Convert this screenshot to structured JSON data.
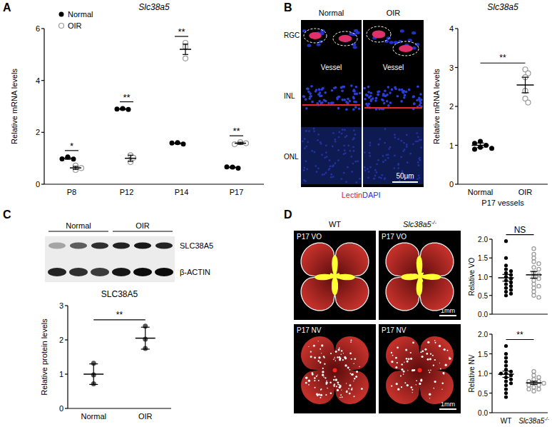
{
  "panels": [
    "A",
    "B",
    "C",
    "D"
  ],
  "chart_data": [
    {
      "type": "scatter",
      "title": "Slc38a5",
      "y_label": "Relative mRNA levels",
      "categories": [
        "P8",
        "P12",
        "P14",
        "P17"
      ],
      "ylim": [
        0,
        6
      ],
      "yticks": [
        0,
        2,
        4,
        6
      ],
      "legend": "upper left",
      "series": [
        {
          "name": "Normal",
          "color": "#000000",
          "marker": "circle",
          "values": [
            1.0,
            2.9,
            1.58,
            0.65
          ],
          "error": [
            0.04,
            0.03,
            0.03,
            0.03
          ],
          "points": [
            [
              1.05,
              0.97,
              0.98
            ],
            [
              2.92,
              2.88,
              2.9
            ],
            [
              1.6,
              1.55,
              1.59
            ],
            [
              0.66,
              0.62,
              0.67
            ]
          ]
        },
        {
          "name": "OIR",
          "color": "#9a9a9a",
          "marker": "open_circle",
          "values": [
            0.63,
            1.0,
            5.2,
            1.58
          ],
          "error": [
            0.06,
            0.12,
            0.2,
            0.04
          ],
          "points": [
            [
              0.72,
              0.55,
              0.62
            ],
            [
              1.12,
              0.85,
              1.02
            ],
            [
              5.45,
              4.85,
              5.3
            ],
            [
              1.62,
              1.58,
              1.54
            ]
          ]
        }
      ],
      "annotations": [
        "*",
        "**",
        "**",
        "**"
      ]
    },
    {
      "type": "scatter",
      "title": "Slc38a5",
      "y_label": "Relative mRNA levels",
      "x_label": "P17 vessels",
      "categories": [
        "Normal",
        "OIR"
      ],
      "ylim": [
        0,
        4
      ],
      "yticks": [
        0,
        1,
        2,
        3,
        4
      ],
      "series": [
        {
          "color": "#000000",
          "marker": "circle",
          "values": [
            1.0,
            null
          ],
          "error": [
            0.06,
            null
          ],
          "points": [
            [
              1.1,
              0.95,
              1.0,
              0.9,
              0.92,
              1.05
            ],
            null
          ]
        },
        {
          "color": "#9a9a9a",
          "marker": "open_circle",
          "values": [
            null,
            2.55
          ],
          "error": [
            null,
            0.2
          ],
          "points": [
            null,
            [
              2.95,
              2.85,
              2.75,
              2.4,
              2.2,
              2.1
            ]
          ]
        }
      ],
      "annotations": [
        "**"
      ]
    },
    {
      "type": "scatter",
      "title": "SLC38A5",
      "y_label": "Relative protein levels",
      "categories": [
        "Normal",
        "OIR"
      ],
      "ylim": [
        0,
        3
      ],
      "yticks": [
        0,
        1,
        2,
        3
      ],
      "series": [
        {
          "color": "#555555",
          "marker": "circle",
          "values": [
            1.0,
            2.05
          ],
          "error": [
            0.3,
            0.32
          ],
          "points": [
            [
              1.32,
              0.72,
              0.98
            ],
            [
              2.4,
              2.02,
              1.75
            ]
          ]
        }
      ],
      "annotations": [
        "**"
      ]
    },
    {
      "type": "scatter",
      "y_label": "Relative VO",
      "categories": [
        "WT",
        "Slc38a5-/-"
      ],
      "tick_labels": "y",
      "ylim": [
        0,
        2
      ],
      "yticks": [
        {
          "value": 0,
          "label": "0.0"
        },
        0.5,
        {
          "value": 1,
          "label": "1.0"
        },
        1.5,
        {
          "value": 2,
          "label": "2.0"
        }
      ],
      "series": [
        {
          "color": "#000000",
          "marker": "circle",
          "values": [
            0.97,
            null
          ],
          "error": [
            0.09,
            null
          ],
          "points": [
            [
              1.95,
              1.5,
              1.3,
              1.2,
              1.15,
              1.1,
              1.05,
              1.0,
              0.95,
              0.9,
              0.85,
              0.8,
              0.75,
              0.7,
              0.65,
              0.6,
              0.55,
              0.5
            ],
            null
          ]
        },
        {
          "color": "#9a9a9a",
          "marker": "open_circle",
          "values": [
            null,
            1.05
          ],
          "error": [
            null,
            0.09
          ],
          "points": [
            null,
            [
              1.75,
              1.6,
              1.5,
              1.4,
              1.35,
              1.25,
              1.2,
              1.1,
              1.05,
              1.0,
              0.95,
              0.9,
              0.8,
              0.75,
              0.7,
              0.6,
              0.5,
              0.45
            ]
          ]
        }
      ],
      "annotations": [
        "NS"
      ]
    },
    {
      "type": "scatter",
      "y_label": "Relative NV",
      "categories": [
        "WT",
        "Slc38a5-/-"
      ],
      "ylim": [
        0,
        2
      ],
      "yticks": [
        {
          "value": 0,
          "label": "0.0"
        },
        0.5,
        {
          "value": 1,
          "label": "1.0"
        },
        1.5,
        {
          "value": 2,
          "label": "2.0"
        }
      ],
      "series": [
        {
          "color": "#000000",
          "marker": "circle",
          "values": [
            0.98,
            null
          ],
          "error": [
            0.08,
            null
          ],
          "points": [
            [
              1.7,
              1.5,
              1.4,
              1.3,
              1.2,
              1.1,
              1.05,
              1.0,
              1.0,
              0.95,
              0.9,
              0.85,
              0.8,
              0.75,
              0.7,
              0.6,
              0.5,
              0.4
            ],
            null
          ]
        },
        {
          "color": "#9a9a9a",
          "marker": "open_circle",
          "values": [
            null,
            0.76
          ],
          "error": [
            null,
            0.04
          ],
          "points": [
            null,
            [
              1.05,
              0.95,
              0.9,
              0.85,
              0.8,
              0.8,
              0.75,
              0.75,
              0.7,
              0.7,
              0.65,
              0.6,
              0.6,
              0.55
            ]
          ]
        }
      ],
      "annotations": [
        "**"
      ]
    }
  ],
  "images": {
    "B": {
      "layers": [
        "RGC",
        "INL",
        "ONL"
      ],
      "columns": [
        "Normal",
        "OIR"
      ],
      "vessel_label": "Vessel",
      "stain": [
        "Lectin",
        "DAPI"
      ],
      "scale_bar": "50μm"
    },
    "C": {
      "groups": [
        "Normal",
        "OIR"
      ],
      "bands": [
        "SLC38A5",
        "β-ACTIN"
      ]
    },
    "D": {
      "columns": [
        "WT",
        "Slc38a5-/-"
      ],
      "rows": [
        "P17 VO",
        "P17 NV"
      ],
      "scale_bar": "1mm"
    }
  }
}
